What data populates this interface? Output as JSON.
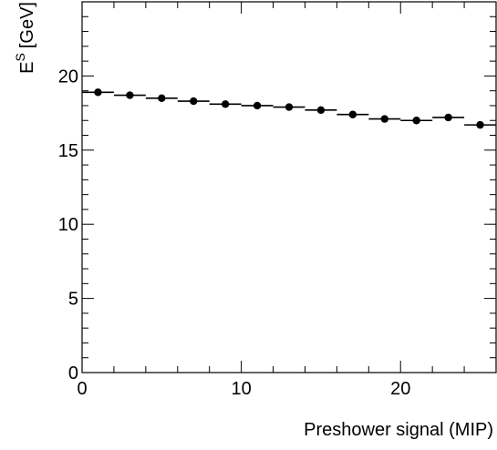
{
  "chart_data": {
    "type": "scatter",
    "title": "",
    "xlabel": "Preshower signal (MIP)",
    "ylabel": "E",
    "ylabel_superscript": "S",
    "ylabel_unit": "[GeV]",
    "xlim": [
      0,
      26
    ],
    "ylim": [
      0,
      25
    ],
    "grid": false,
    "x_major_ticks": [
      0,
      10,
      20
    ],
    "y_major_ticks": [
      0,
      5,
      10,
      15,
      20
    ],
    "x_tick_labels": [
      "0",
      "10",
      "20"
    ],
    "y_tick_labels": [
      "0",
      "5",
      "10",
      "15",
      "20"
    ],
    "bin_width": 2,
    "x": [
      1,
      3,
      5,
      7,
      9,
      11,
      13,
      15,
      17,
      19,
      21,
      23,
      25
    ],
    "y": [
      18.9,
      18.7,
      18.5,
      18.3,
      18.1,
      18.0,
      17.9,
      17.7,
      17.4,
      17.1,
      17.0,
      17.2,
      16.7
    ],
    "marker_color": "#000000"
  }
}
